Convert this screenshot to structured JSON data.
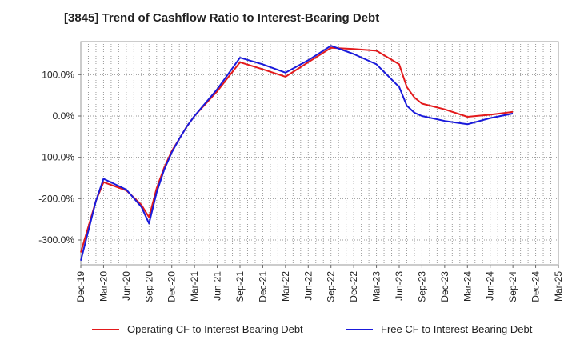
{
  "chart_data": {
    "type": "line",
    "title": "[3845]  Trend of Cashflow Ratio to Interest-Bearing Debt",
    "xlabel": "",
    "ylabel": "",
    "x_tick_labels": [
      "Dec-19",
      "Mar-20",
      "Jun-20",
      "Sep-20",
      "Dec-20",
      "Mar-21",
      "Jun-21",
      "Sep-21",
      "Dec-21",
      "Mar-22",
      "Jun-22",
      "Sep-22",
      "Dec-22",
      "Mar-23",
      "Jun-23",
      "Sep-23",
      "Dec-23",
      "Mar-24",
      "Jun-24",
      "Sep-24",
      "Dec-24",
      "Mar-25"
    ],
    "y_tick_labels": [
      "100.0%",
      "0.0%",
      "-100.0%",
      "-200.0%",
      "-300.0%"
    ],
    "y_ticks": [
      100,
      0,
      -100,
      -200,
      -300
    ],
    "ylim": [
      -360,
      180
    ],
    "grid": true,
    "legend_position": "bottom",
    "series": [
      {
        "name": "Operating CF to Interest-Bearing Debt",
        "color": "#e31a1c",
        "points": [
          [
            "Dec-19",
            -330
          ],
          [
            "Feb-20",
            -205
          ],
          [
            "Mar-20",
            -160
          ],
          [
            "Jun-20",
            -180
          ],
          [
            "Aug-20",
            -215
          ],
          [
            "Sep-20",
            -245
          ],
          [
            "Oct-20",
            -175
          ],
          [
            "Nov-20",
            -125
          ],
          [
            "Dec-20",
            -85
          ],
          [
            "Jan-21",
            -55
          ],
          [
            "Feb-21",
            -25
          ],
          [
            "Mar-21",
            0
          ],
          [
            "Jun-21",
            60
          ],
          [
            "Sep-21",
            130
          ],
          [
            "Dec-21",
            113
          ],
          [
            "Mar-22",
            95
          ],
          [
            "Jun-22",
            130
          ],
          [
            "Sep-22",
            165
          ],
          [
            "Dec-22",
            162
          ],
          [
            "Mar-23",
            158
          ],
          [
            "Jun-23",
            125
          ],
          [
            "Jul-23",
            70
          ],
          [
            "Aug-23",
            45
          ],
          [
            "Sep-23",
            30
          ],
          [
            "Dec-23",
            16
          ],
          [
            "Mar-24",
            -2
          ],
          [
            "Jun-24",
            3
          ],
          [
            "Sep-24",
            10
          ]
        ]
      },
      {
        "name": "Free CF to Interest-Bearing Debt",
        "color": "#1a1adb",
        "points": [
          [
            "Dec-19",
            -350
          ],
          [
            "Feb-20",
            -205
          ],
          [
            "Mar-20",
            -152
          ],
          [
            "Jun-20",
            -178
          ],
          [
            "Aug-20",
            -220
          ],
          [
            "Sep-20",
            -260
          ],
          [
            "Oct-20",
            -185
          ],
          [
            "Nov-20",
            -130
          ],
          [
            "Dec-20",
            -88
          ],
          [
            "Jan-21",
            -55
          ],
          [
            "Feb-21",
            -25
          ],
          [
            "Mar-21",
            0
          ],
          [
            "Jun-21",
            65
          ],
          [
            "Sep-21",
            141
          ],
          [
            "Dec-21",
            125
          ],
          [
            "Mar-22",
            105
          ],
          [
            "Jun-22",
            135
          ],
          [
            "Sep-22",
            170
          ],
          [
            "Dec-22",
            150
          ],
          [
            "Mar-23",
            125
          ],
          [
            "Jun-23",
            70
          ],
          [
            "Jul-23",
            25
          ],
          [
            "Aug-23",
            8
          ],
          [
            "Sep-23",
            0
          ],
          [
            "Dec-23",
            -12
          ],
          [
            "Mar-24",
            -20
          ],
          [
            "Jun-24",
            -5
          ],
          [
            "Sep-24",
            6
          ]
        ]
      }
    ]
  }
}
